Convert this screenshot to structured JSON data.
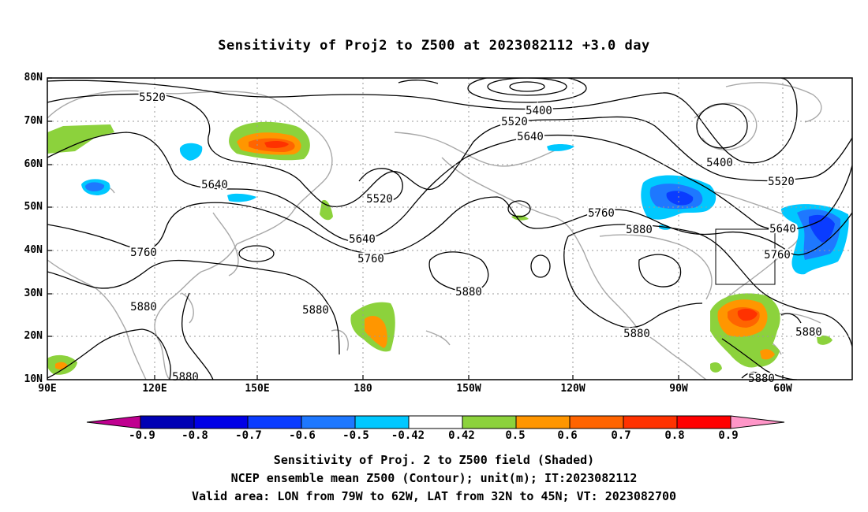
{
  "title": "Sensitivity of Proj2 to Z500 at 2023082112 +3.0 day",
  "lat_labels": [
    "80N",
    "70N",
    "60N",
    "50N",
    "40N",
    "30N",
    "20N",
    "10N"
  ],
  "lon_labels": [
    "90E",
    "120E",
    "150E",
    "180",
    "150W",
    "120W",
    "90W",
    "60W"
  ],
  "contour_labels": [
    {
      "text": "5520"
    },
    {
      "text": "5400"
    },
    {
      "text": "5520"
    },
    {
      "text": "5640"
    },
    {
      "text": "5400"
    },
    {
      "text": "5520"
    },
    {
      "text": "5640"
    },
    {
      "text": "5520"
    },
    {
      "text": "5760"
    },
    {
      "text": "5880"
    },
    {
      "text": "5640"
    },
    {
      "text": "5640"
    },
    {
      "text": "5760"
    },
    {
      "text": "5760"
    },
    {
      "text": "5760"
    },
    {
      "text": "5880"
    },
    {
      "text": "5880"
    },
    {
      "text": "5880"
    },
    {
      "text": "5880"
    },
    {
      "text": "5880"
    },
    {
      "text": "5880"
    },
    {
      "text": "5880"
    }
  ],
  "colorbar": {
    "labels": [
      "-0.9",
      "-0.8",
      "-0.7",
      "-0.6",
      "-0.5",
      "-0.42",
      "0.42",
      "0.5",
      "0.6",
      "0.7",
      "0.8",
      "0.9"
    ],
    "colors": [
      "#c00090",
      "#0000b4",
      "#0000e6",
      "#0a3cff",
      "#1e78ff",
      "#00c8ff",
      "#ffffff",
      "#8cd23c",
      "#ff9600",
      "#ff6400",
      "#ff3200",
      "#ff0000",
      "#ff96c8"
    ]
  },
  "valid_area": {
    "lon": [
      -79,
      -62
    ],
    "lat": [
      32,
      45
    ]
  },
  "captions": {
    "line1": "Sensitivity of Proj. 2 to Z500 field (Shaded)",
    "line2": "NCEP ensemble mean Z500 (Contour); unit(m); IT:2023082112",
    "line3": "Valid area: LON from 79W to 62W, LAT from 32N to 45N; VT: 2023082700"
  }
}
